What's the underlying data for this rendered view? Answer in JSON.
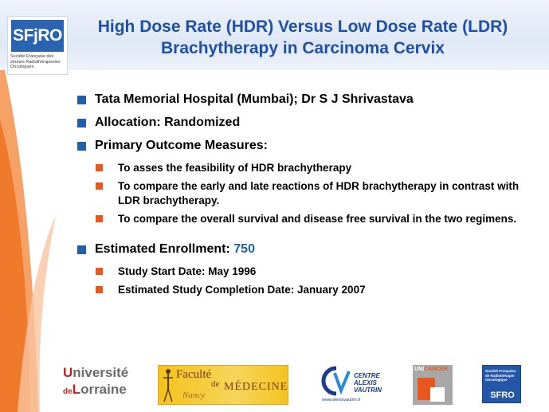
{
  "header": {
    "title_line1": "High Dose Rate (HDR) Versus Low Dose Rate (LDR)",
    "title_line2": "Brachytherapy in Carcinoma Cervix",
    "sfjro_logo": {
      "mark": "SFjRO",
      "small_left": "Société Française des",
      "small_right": "Jeunes Radiothérapeutes Oncologues"
    }
  },
  "content": {
    "item1": "Tata Memorial Hospital (Mumbai); Dr S J Shrivastava",
    "item2": "Allocation: Randomized",
    "item3": "Primary Outcome Measures:",
    "item3_subs": [
      "To asses the feasibility of HDR brachytherapy",
      "To compare the early and late reactions of HDR brachytherapy in contrast with LDR brachytherapy.",
      "To compare the overall survival and disease free survival in the two regimens."
    ],
    "item4_label": "Estimated Enrollment:",
    "item4_value": "750",
    "item4_subs": [
      "Study Start Date: May 1996",
      "Estimated Study Completion Date: January 2007"
    ]
  },
  "footer_logos": {
    "lorraine": {
      "u": "U",
      "niv": "niversité",
      "de": "de",
      "l": "L",
      "orraine": "orraine"
    },
    "medecine": {
      "faculte": "Faculté",
      "de": "de",
      "medecine": "MÉDECINE",
      "nancy": "Nancy"
    },
    "cav": {
      "line1": "CENTRE",
      "line2": "ALEXIS",
      "line3": "VAUTRIN",
      "url": "www.alexisvautrin.fr"
    },
    "unicancer": {
      "uni": "UNI",
      "cancer": "CANCER"
    },
    "sfro": {
      "small": "Société Française de Radiothérapie Oncologique",
      "mark": "SFRO"
    }
  },
  "colors": {
    "title_blue": "#1f4fa8",
    "bullet_blue": "#1f5fae",
    "bullet_orange": "#e8571e",
    "swoosh_orange": "#f07a2c"
  }
}
